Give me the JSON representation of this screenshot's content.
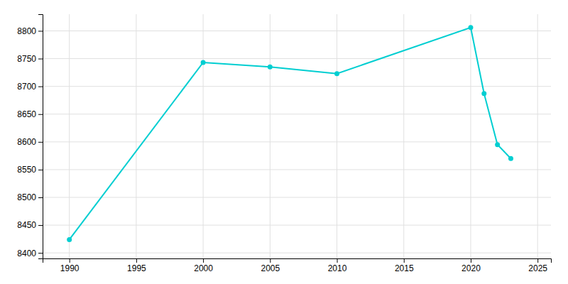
{
  "chart_data": {
    "type": "line",
    "x": [
      1990,
      2000,
      2005,
      2010,
      2020,
      2021,
      2022,
      2023
    ],
    "values": [
      8424,
      8743,
      8735,
      8723,
      8806,
      8687,
      8595,
      8570
    ],
    "color": "#00CED1",
    "marker": "circle",
    "xlim": [
      1988,
      2026
    ],
    "ylim": [
      8390,
      8830
    ],
    "xticks": [
      1990,
      1995,
      2000,
      2005,
      2010,
      2015,
      2020,
      2025
    ],
    "yticks": [
      8400,
      8450,
      8500,
      8550,
      8600,
      8650,
      8700,
      8750,
      8800
    ],
    "grid": true
  }
}
